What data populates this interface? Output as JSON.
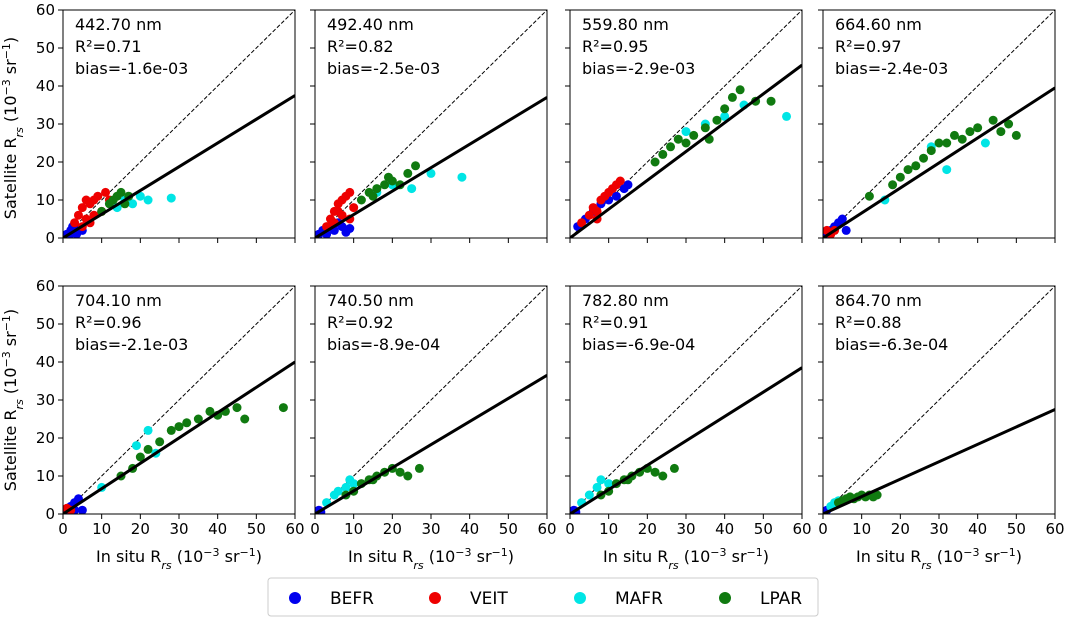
{
  "figure": {
    "y_label_main": "Satellite R",
    "y_label_sub": "rs",
    "y_label_units": " (10",
    "y_label_exp": "−3",
    "y_label_tail": " sr",
    "y_label_exp2": "−1",
    "y_label_close": ")",
    "x_label_main": "In situ R",
    "x_label_sub": "rs",
    "x_label_units": " (10",
    "x_label_exp": "−3",
    "x_label_tail": " sr",
    "x_label_exp2": "−1",
    "x_label_close": ")"
  },
  "legend": {
    "items": [
      {
        "label": "BEFR",
        "color": "#0000ee"
      },
      {
        "label": "VEIT",
        "color": "#ee0000"
      },
      {
        "label": "MAFR",
        "color": "#00e5e5"
      },
      {
        "label": "LPAR",
        "color": "#107a10"
      }
    ]
  },
  "chart_data": [
    {
      "type": "scatter",
      "title": "442.70 nm",
      "r2": "R²=0.71",
      "bias": "bias=-1.6e-03",
      "xlim": [
        0,
        60
      ],
      "ylim": [
        0,
        60
      ],
      "fit_end_y": 37.5,
      "series": [
        {
          "name": "BEFR",
          "points": [
            [
              1,
              1
            ],
            [
              2,
              2
            ],
            [
              3,
              1.5
            ],
            [
              4,
              2.5
            ],
            [
              1.5,
              0.5
            ],
            [
              2.5,
              3
            ],
            [
              3.5,
              1
            ],
            [
              5,
              2
            ]
          ]
        },
        {
          "name": "VEIT",
          "points": [
            [
              3,
              4
            ],
            [
              4,
              6
            ],
            [
              5,
              8
            ],
            [
              6,
              5
            ],
            [
              7,
              9
            ],
            [
              8,
              10
            ],
            [
              9,
              11
            ],
            [
              10,
              7
            ],
            [
              11,
              12
            ],
            [
              6,
              10
            ],
            [
              8,
              6
            ],
            [
              12,
              10
            ],
            [
              5,
              3
            ],
            [
              7,
              4
            ]
          ]
        },
        {
          "name": "MAFR",
          "points": [
            [
              14,
              8
            ],
            [
              16,
              10
            ],
            [
              18,
              9
            ],
            [
              20,
              11
            ],
            [
              22,
              10
            ],
            [
              28,
              10.5
            ]
          ]
        },
        {
          "name": "LPAR",
          "points": [
            [
              10,
              7
            ],
            [
              12,
              9
            ],
            [
              14,
              11
            ],
            [
              15,
              12
            ],
            [
              17,
              11
            ],
            [
              13,
              10
            ],
            [
              16,
              9
            ]
          ]
        }
      ]
    },
    {
      "type": "scatter",
      "title": "492.40 nm",
      "r2": "R²=0.82",
      "bias": "bias=-2.5e-03",
      "xlim": [
        0,
        60
      ],
      "ylim": [
        0,
        60
      ],
      "fit_end_y": 37,
      "series": [
        {
          "name": "BEFR",
          "points": [
            [
              1,
              1
            ],
            [
              2,
              2
            ],
            [
              3,
              1
            ],
            [
              4,
              3
            ],
            [
              5,
              2
            ],
            [
              6,
              4
            ],
            [
              7,
              3
            ],
            [
              8,
              1.5
            ],
            [
              9,
              2.5
            ]
          ]
        },
        {
          "name": "VEIT",
          "points": [
            [
              3,
              3
            ],
            [
              4,
              5
            ],
            [
              5,
              7
            ],
            [
              6,
              9
            ],
            [
              7,
              10
            ],
            [
              8,
              11
            ],
            [
              9,
              12
            ],
            [
              10,
              8
            ],
            [
              5,
              4
            ],
            [
              7,
              6
            ],
            [
              9,
              5
            ],
            [
              6,
              7
            ]
          ]
        },
        {
          "name": "MAFR",
          "points": [
            [
              16,
              12
            ],
            [
              20,
              14
            ],
            [
              25,
              13
            ],
            [
              30,
              17
            ],
            [
              38,
              16
            ]
          ]
        },
        {
          "name": "LPAR",
          "points": [
            [
              12,
              10
            ],
            [
              14,
              12
            ],
            [
              16,
              13
            ],
            [
              18,
              14
            ],
            [
              20,
              15
            ],
            [
              22,
              14
            ],
            [
              24,
              17
            ],
            [
              26,
              19
            ],
            [
              15,
              11
            ],
            [
              19,
              16
            ]
          ]
        }
      ]
    },
    {
      "type": "scatter",
      "title": "559.80 nm",
      "r2": "R²=0.95",
      "bias": "bias=-2.9e-03",
      "xlim": [
        0,
        60
      ],
      "ylim": [
        0,
        60
      ],
      "fit_end_y": 45.5,
      "series": [
        {
          "name": "BEFR",
          "points": [
            [
              2,
              3
            ],
            [
              4,
              5
            ],
            [
              6,
              7
            ],
            [
              8,
              9
            ],
            [
              10,
              10
            ],
            [
              12,
              11
            ],
            [
              14,
              13
            ],
            [
              15,
              14
            ]
          ]
        },
        {
          "name": "VEIT",
          "points": [
            [
              3,
              4
            ],
            [
              5,
              6
            ],
            [
              6,
              8
            ],
            [
              7,
              7
            ],
            [
              8,
              10
            ],
            [
              9,
              11
            ],
            [
              10,
              12
            ],
            [
              11,
              13
            ],
            [
              12,
              14
            ],
            [
              13,
              15
            ],
            [
              7,
              5
            ]
          ]
        },
        {
          "name": "MAFR",
          "points": [
            [
              30,
              28
            ],
            [
              35,
              30
            ],
            [
              40,
              32
            ],
            [
              45,
              35
            ],
            [
              56,
              32
            ]
          ]
        },
        {
          "name": "LPAR",
          "points": [
            [
              22,
              20
            ],
            [
              24,
              22
            ],
            [
              26,
              24
            ],
            [
              28,
              26
            ],
            [
              30,
              25
            ],
            [
              32,
              27
            ],
            [
              35,
              29
            ],
            [
              38,
              31
            ],
            [
              40,
              34
            ],
            [
              42,
              37
            ],
            [
              44,
              39
            ],
            [
              48,
              36
            ],
            [
              52,
              36
            ],
            [
              36,
              26
            ]
          ]
        }
      ]
    },
    {
      "type": "scatter",
      "title": "664.60 nm",
      "r2": "R²=0.97",
      "bias": "bias=-2.4e-03",
      "xlim": [
        0,
        60
      ],
      "ylim": [
        0,
        60
      ],
      "fit_end_y": 39.5,
      "series": [
        {
          "name": "BEFR",
          "points": [
            [
              1,
              1
            ],
            [
              2,
              2
            ],
            [
              3,
              3
            ],
            [
              4,
              4
            ],
            [
              5,
              5
            ],
            [
              6,
              2
            ]
          ]
        },
        {
          "name": "VEIT",
          "points": [
            [
              1,
              2
            ],
            [
              2,
              1
            ],
            [
              3,
              2
            ]
          ]
        },
        {
          "name": "MAFR",
          "points": [
            [
              16,
              10
            ],
            [
              28,
              24
            ],
            [
              32,
              18
            ],
            [
              42,
              25
            ]
          ]
        },
        {
          "name": "LPAR",
          "points": [
            [
              12,
              11
            ],
            [
              18,
              14
            ],
            [
              20,
              16
            ],
            [
              22,
              18
            ],
            [
              24,
              19
            ],
            [
              26,
              21
            ],
            [
              28,
              23
            ],
            [
              30,
              25
            ],
            [
              32,
              25
            ],
            [
              34,
              27
            ],
            [
              36,
              26
            ],
            [
              38,
              28
            ],
            [
              40,
              29
            ],
            [
              44,
              31
            ],
            [
              46,
              28
            ],
            [
              48,
              30
            ],
            [
              50,
              27
            ]
          ]
        }
      ]
    },
    {
      "type": "scatter",
      "title": "704.10 nm",
      "r2": "R²=0.96",
      "bias": "bias=-2.1e-03",
      "xlim": [
        0,
        60
      ],
      "ylim": [
        0,
        60
      ],
      "fit_end_y": 40,
      "series": [
        {
          "name": "BEFR",
          "points": [
            [
              1,
              1
            ],
            [
              2,
              2
            ],
            [
              3,
              3
            ],
            [
              4,
              4
            ],
            [
              5,
              1
            ],
            [
              3,
              1
            ]
          ]
        },
        {
          "name": "VEIT",
          "points": [
            [
              1,
              1.5
            ],
            [
              2,
              1
            ]
          ]
        },
        {
          "name": "MAFR",
          "points": [
            [
              10,
              7
            ],
            [
              19,
              18
            ],
            [
              22,
              22
            ],
            [
              24,
              16
            ]
          ]
        },
        {
          "name": "LPAR",
          "points": [
            [
              15,
              10
            ],
            [
              18,
              12
            ],
            [
              20,
              15
            ],
            [
              22,
              17
            ],
            [
              25,
              19
            ],
            [
              28,
              22
            ],
            [
              30,
              23
            ],
            [
              32,
              24
            ],
            [
              35,
              25
            ],
            [
              38,
              27
            ],
            [
              40,
              26
            ],
            [
              42,
              27
            ],
            [
              45,
              28
            ],
            [
              47,
              25
            ],
            [
              57,
              28
            ]
          ]
        }
      ]
    },
    {
      "type": "scatter",
      "title": "740.50 nm",
      "r2": "R²=0.92",
      "bias": "bias=-8.9e-04",
      "xlim": [
        0,
        60
      ],
      "ylim": [
        0,
        60
      ],
      "fit_end_y": 36.5,
      "series": [
        {
          "name": "BEFR",
          "points": [
            [
              1,
              1
            ],
            [
              1.5,
              0.5
            ]
          ]
        },
        {
          "name": "VEIT",
          "points": []
        },
        {
          "name": "MAFR",
          "points": [
            [
              3,
              3
            ],
            [
              5,
              5
            ],
            [
              6,
              6
            ],
            [
              8,
              7
            ],
            [
              9,
              9
            ],
            [
              10,
              8
            ]
          ]
        },
        {
          "name": "LPAR",
          "points": [
            [
              8,
              5
            ],
            [
              10,
              6
            ],
            [
              12,
              8
            ],
            [
              14,
              9
            ],
            [
              16,
              10
            ],
            [
              18,
              11
            ],
            [
              20,
              12
            ],
            [
              22,
              11
            ],
            [
              24,
              10
            ],
            [
              27,
              12
            ],
            [
              15,
              9
            ]
          ]
        }
      ]
    },
    {
      "type": "scatter",
      "title": "782.80 nm",
      "r2": "R²=0.91",
      "bias": "bias=-6.9e-04",
      "xlim": [
        0,
        60
      ],
      "ylim": [
        0,
        60
      ],
      "fit_end_y": 38.5,
      "series": [
        {
          "name": "BEFR",
          "points": [
            [
              1,
              1
            ],
            [
              1.5,
              0.5
            ]
          ]
        },
        {
          "name": "VEIT",
          "points": []
        },
        {
          "name": "MAFR",
          "points": [
            [
              3,
              3
            ],
            [
              5,
              5
            ],
            [
              7,
              7
            ],
            [
              8,
              9
            ],
            [
              10,
              8
            ]
          ]
        },
        {
          "name": "LPAR",
          "points": [
            [
              8,
              5
            ],
            [
              10,
              6
            ],
            [
              12,
              8
            ],
            [
              14,
              9
            ],
            [
              16,
              10
            ],
            [
              18,
              11
            ],
            [
              20,
              12
            ],
            [
              22,
              11
            ],
            [
              24,
              10
            ],
            [
              27,
              12
            ],
            [
              15,
              9
            ]
          ]
        }
      ]
    },
    {
      "type": "scatter",
      "title": "864.70 nm",
      "r2": "R²=0.88",
      "bias": "bias=-6.3e-04",
      "xlim": [
        0,
        60
      ],
      "ylim": [
        0,
        60
      ],
      "fit_end_y": 27.5,
      "series": [
        {
          "name": "BEFR",
          "points": [
            [
              0.5,
              0.5
            ],
            [
              1,
              1
            ]
          ]
        },
        {
          "name": "VEIT",
          "points": []
        },
        {
          "name": "MAFR",
          "points": [
            [
              2,
              2
            ],
            [
              3,
              3
            ],
            [
              4,
              3.5
            ]
          ]
        },
        {
          "name": "LPAR",
          "points": [
            [
              4,
              3
            ],
            [
              5,
              3.5
            ],
            [
              6,
              4
            ],
            [
              7,
              4.5
            ],
            [
              8,
              4
            ],
            [
              9,
              4.5
            ],
            [
              10,
              5
            ],
            [
              11,
              4.5
            ],
            [
              12,
              5
            ],
            [
              13,
              4.5
            ],
            [
              14,
              5
            ]
          ]
        }
      ]
    }
  ]
}
